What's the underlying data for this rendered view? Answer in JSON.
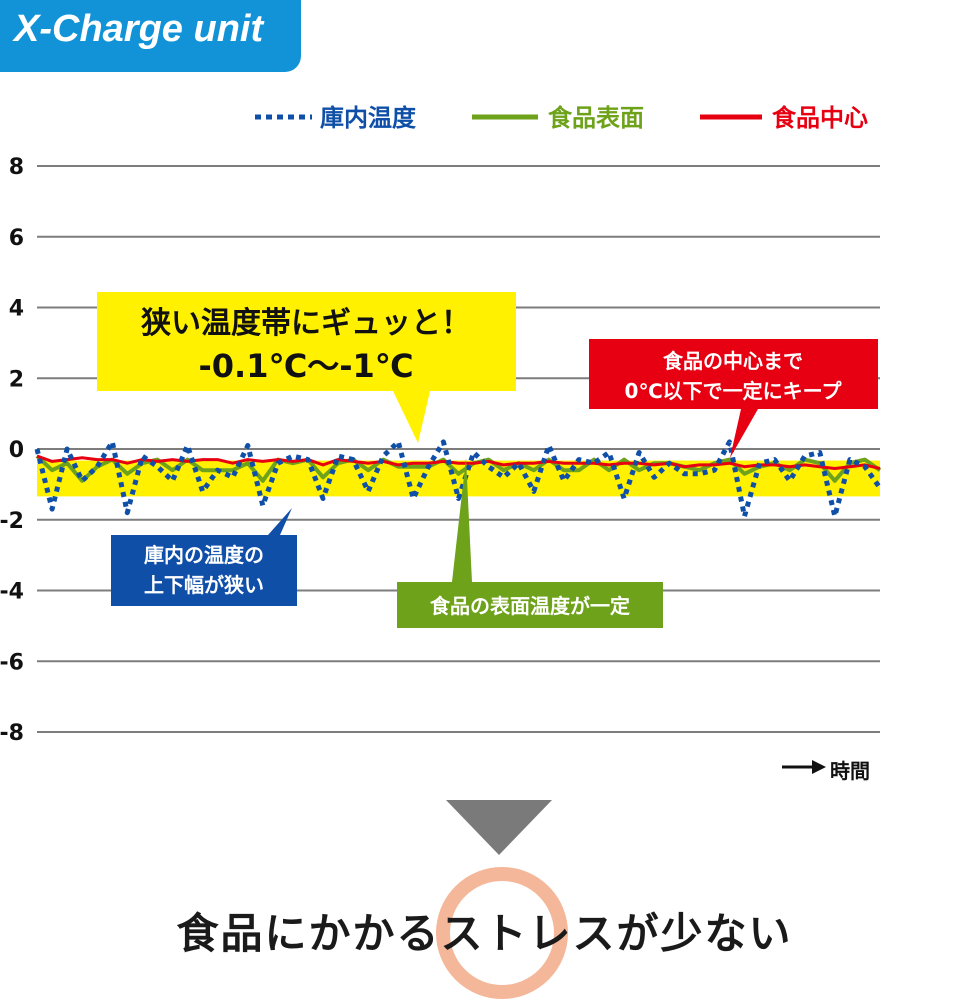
{
  "badge": {
    "text": "X-Charge unit",
    "color": "#1393d7"
  },
  "legend": [
    {
      "label": "庫内温度",
      "color": "#0f4fa8",
      "style": "dotted"
    },
    {
      "label": "食品表面",
      "color": "#6ea21a",
      "style": "solid"
    },
    {
      "label": "食品中心",
      "color": "#e60012",
      "style": "solid"
    }
  ],
  "chart_data": {
    "type": "line",
    "ylim": [
      -8,
      8
    ],
    "yticks": [
      "8",
      "6",
      "4",
      "2",
      "0",
      "-2",
      "-4",
      "-6",
      "-8"
    ],
    "band": {
      "from": -0.1,
      "to": -1,
      "color": "#fff100"
    },
    "xlabel": "時間",
    "series": [
      {
        "name": "庫内温度",
        "color": "#0f4fa8",
        "values": [
          0.0,
          -1.7,
          0.0,
          -0.9,
          -0.5,
          0.2,
          -1.8,
          -0.2,
          -0.5,
          -0.9,
          0.1,
          -1.2,
          -0.6,
          -0.8,
          0.1,
          -1.6,
          -0.4,
          -0.2,
          -0.3,
          -1.4,
          -0.2,
          -0.3,
          -1.2,
          -0.2,
          0.2,
          -1.4,
          -0.5,
          0.2,
          -1.4,
          -0.1,
          -0.5,
          -0.8,
          -0.4,
          -1.2,
          0.1,
          -0.9,
          -0.3,
          -0.4,
          -0.1,
          -1.4,
          -0.1,
          -0.8,
          -0.4,
          -0.7,
          -0.7,
          -0.6,
          0.2,
          -1.9,
          -0.4,
          -0.3,
          -0.9,
          -0.2,
          -0.1,
          -1.9,
          -0.3,
          -0.5,
          -1.1
        ]
      },
      {
        "name": "食品表面",
        "color": "#6ea21a",
        "values": [
          -0.2,
          -0.6,
          -0.4,
          -0.9,
          -0.5,
          -0.3,
          -0.7,
          -0.4,
          -0.3,
          -0.6,
          -0.3,
          -0.6,
          -0.6,
          -0.6,
          -0.4,
          -0.9,
          -0.3,
          -0.4,
          -0.3,
          -0.8,
          -0.4,
          -0.3,
          -0.6,
          -0.3,
          -0.5,
          -0.5,
          -0.5,
          -0.3,
          -0.7,
          -0.4,
          -0.3,
          -0.6,
          -0.4,
          -0.6,
          -0.3,
          -0.6,
          -0.6,
          -0.3,
          -0.6,
          -0.3,
          -0.6,
          -0.4,
          -0.4,
          -0.5,
          -0.6,
          -0.4,
          -0.3,
          -0.7,
          -0.5,
          -0.4,
          -0.6,
          -0.3,
          -0.4,
          -0.9,
          -0.4,
          -0.3,
          -0.6
        ]
      },
      {
        "name": "食品中心",
        "color": "#e60012",
        "values": [
          -0.2,
          -0.35,
          -0.3,
          -0.25,
          -0.3,
          -0.3,
          -0.4,
          -0.3,
          -0.35,
          -0.3,
          -0.35,
          -0.3,
          -0.3,
          -0.4,
          -0.3,
          -0.35,
          -0.3,
          -0.35,
          -0.3,
          -0.45,
          -0.3,
          -0.35,
          -0.4,
          -0.35,
          -0.45,
          -0.4,
          -0.4,
          -0.35,
          -0.4,
          -0.4,
          -0.35,
          -0.45,
          -0.4,
          -0.4,
          -0.35,
          -0.4,
          -0.4,
          -0.4,
          -0.45,
          -0.4,
          -0.4,
          -0.45,
          -0.4,
          -0.5,
          -0.45,
          -0.45,
          -0.4,
          -0.5,
          -0.45,
          -0.45,
          -0.5,
          -0.45,
          -0.5,
          -0.55,
          -0.5,
          -0.45,
          -0.55
        ]
      }
    ]
  },
  "callouts": {
    "yellow": {
      "line1": "狭い温度帯にギュッと！",
      "line2": "-0.1℃～-1℃",
      "color": "#fff100"
    },
    "red": {
      "line1": "食品の中心まで",
      "line2": "0℃以下で一定にキープ",
      "color": "#e60012"
    },
    "blue": {
      "line1": "庫内の温度の",
      "line2": "上下幅が狭い",
      "color": "#0f4fa8"
    },
    "green": {
      "line1": "食品の表面温度が一定",
      "color": "#6ea21a"
    }
  },
  "bottom_message": "食品にかかるストレスが少ない"
}
